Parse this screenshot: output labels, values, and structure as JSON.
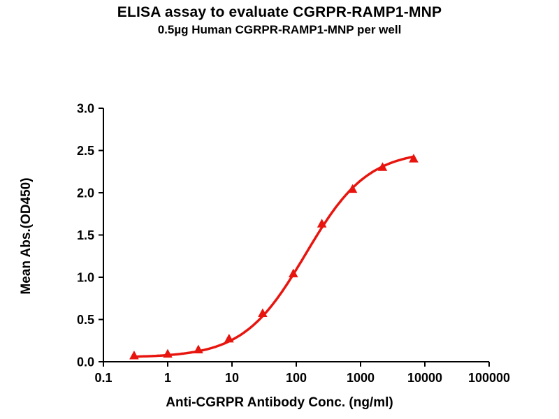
{
  "chart_data": {
    "type": "line",
    "title": "ELISA assay to evaluate CGRPR-RAMP1-MNP",
    "subtitle": "0.5µg Human CGRPR-RAMP1-MNP per well",
    "xlabel": "Anti-CGRPR Antibody Conc. (ng/ml)",
    "ylabel": "Mean Abs.(OD450)",
    "x_scale": "log",
    "xlim": [
      0.1,
      100000
    ],
    "ylim": [
      0.0,
      3.0
    ],
    "x_ticks": [
      "0.1",
      "1",
      "10",
      "100",
      "1000",
      "10000",
      "100000"
    ],
    "y_ticks": [
      "0.0",
      "0.5",
      "1.0",
      "1.5",
      "2.0",
      "2.5",
      "3.0"
    ],
    "grid": false,
    "legend": "none",
    "series": [
      {
        "name": "Human CGRPR-RAMP1-MNP",
        "marker": "triangle",
        "color": "#e8150f",
        "points": [
          [
            0.3,
            0.07
          ],
          [
            1,
            0.09
          ],
          [
            3,
            0.14
          ],
          [
            9,
            0.27
          ],
          [
            30,
            0.57
          ],
          [
            90,
            1.04
          ],
          [
            250,
            1.63
          ],
          [
            750,
            2.04
          ],
          [
            2200,
            2.3
          ],
          [
            6700,
            2.4
          ]
        ]
      }
    ],
    "fit": {
      "model": "4PL",
      "bottom": 0.05,
      "top": 2.5,
      "ec50": 140,
      "hill": 0.9
    }
  }
}
